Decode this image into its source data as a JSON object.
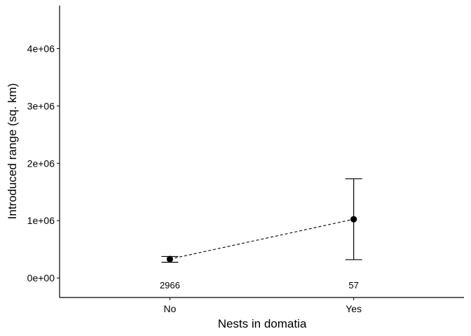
{
  "chart_data": {
    "type": "scatter",
    "xlabel": "Nests in domatia",
    "ylabel": "Introduced range (sq. km)",
    "categories": [
      "No",
      "Yes"
    ],
    "points": [
      {
        "category": "No",
        "mean": 330000,
        "lower": 275000,
        "upper": 375000,
        "n_label": "2966"
      },
      {
        "category": "Yes",
        "mean": 1025000,
        "lower": 320000,
        "upper": 1730000,
        "n_label": "57"
      }
    ],
    "yticks": [
      0,
      1000000,
      2000000,
      3000000,
      4000000
    ],
    "ytick_labels": [
      "0e+00",
      "1e+06",
      "2e+06",
      "3e+06",
      "4e+06"
    ],
    "ylim": [
      -340000,
      4750000
    ],
    "connector": "dashed",
    "grid": false
  }
}
